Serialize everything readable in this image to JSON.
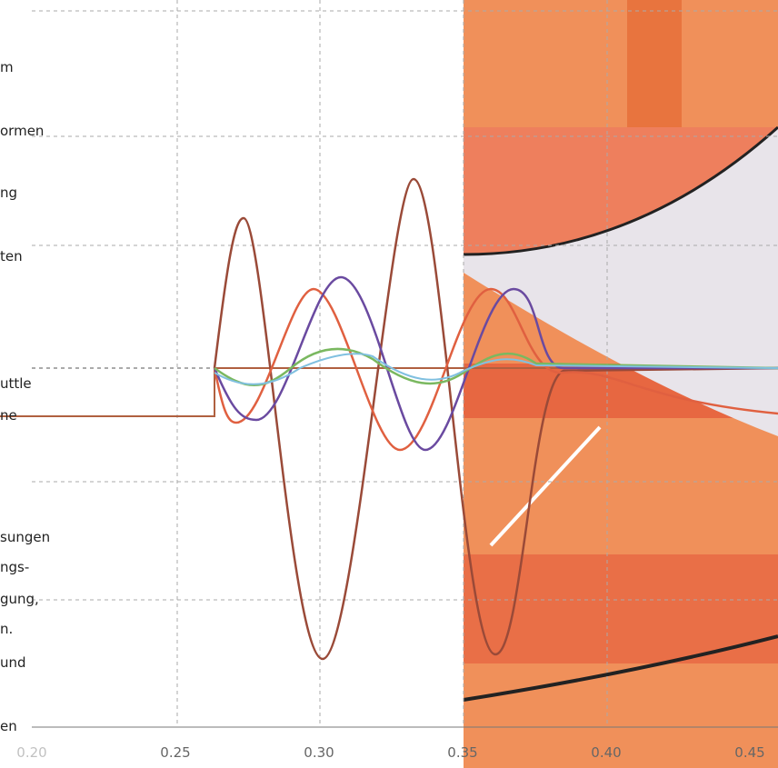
{
  "text_fragments": [
    "m",
    "ormen",
    "ng",
    "ten",
    "uttle",
    "ne",
    "sungen",
    "ngs-",
    "gung,",
    "n.",
    "und",
    "en"
  ],
  "axis": {
    "ticks": [
      "0.20",
      "0.25",
      "0.30",
      "0.35",
      "0.40",
      "0.45"
    ]
  }
}
